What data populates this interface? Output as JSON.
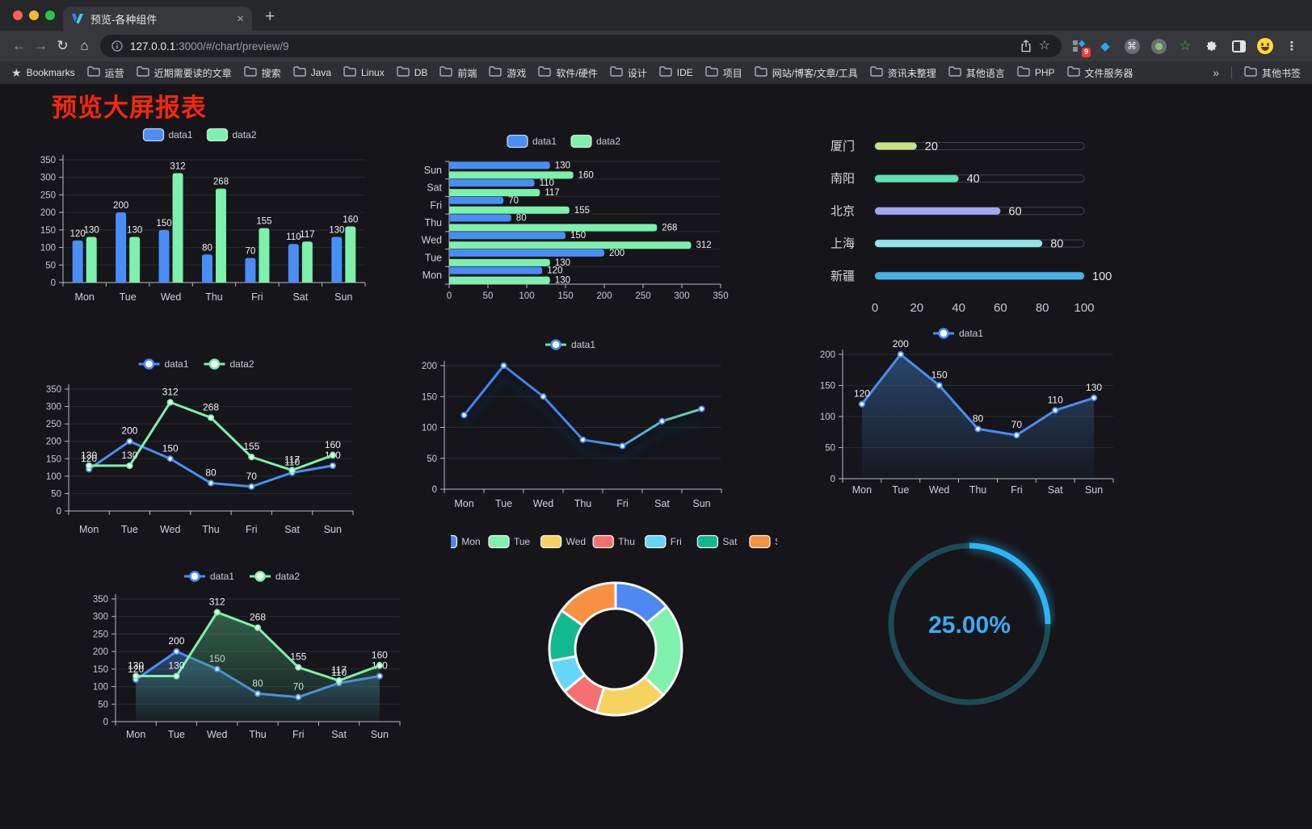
{
  "browser": {
    "window_controls": {
      "close": "#ff5f57",
      "minimize": "#febb2e",
      "zoom": "#27c840"
    },
    "tab": {
      "title": "预览-各种组件",
      "close_glyph": "×",
      "new_tab_glyph": "+"
    },
    "address_bar": {
      "host": "127.0.0.1",
      "path": ":3000/#/chart/preview/9"
    },
    "extensions": {
      "badge_count": "9"
    },
    "bookmarks_bar": {
      "bookmarks_label": "Bookmarks",
      "folders": [
        "运营",
        "近期需要读的文章",
        "搜索",
        "Java",
        "Linux",
        "DB",
        "前端",
        "游戏",
        "软件/硬件",
        "设计",
        "IDE",
        "项目",
        "网站/博客/文章/工具",
        "资讯未整理",
        "其他语言",
        "PHP",
        "文件服务器"
      ],
      "overflow_glyph": "»",
      "other_bookmarks_label": "其他书签"
    }
  },
  "page": {
    "title": "预览大屏报表",
    "title_color": "#f5270e",
    "background": "#15151a"
  },
  "chart_data": [
    {
      "id": "grouped-bar",
      "type": "bar",
      "orientation": "vertical",
      "categories": [
        "Mon",
        "Tue",
        "Wed",
        "Thu",
        "Fri",
        "Sat",
        "Sun"
      ],
      "series": [
        {
          "name": "data1",
          "color": "#4a8df5",
          "values": [
            120,
            200,
            150,
            80,
            70,
            110,
            130
          ]
        },
        {
          "name": "data2",
          "color": "#7df0ab",
          "values": [
            130,
            130,
            312,
            268,
            155,
            117,
            160
          ]
        }
      ],
      "ylim": [
        0,
        350
      ],
      "yticks": [
        0,
        50,
        100,
        150,
        200,
        250,
        300,
        350
      ],
      "grid": true,
      "legend_position": "top",
      "value_labels": true
    },
    {
      "id": "grouped-horizontal-bar",
      "type": "bar",
      "orientation": "horizontal",
      "categories": [
        "Mon",
        "Tue",
        "Wed",
        "Thu",
        "Fri",
        "Sat",
        "Sun"
      ],
      "series": [
        {
          "name": "data1",
          "color": "#4a8df5",
          "values": [
            120,
            200,
            150,
            80,
            70,
            110,
            130
          ]
        },
        {
          "name": "data2",
          "color": "#7df0ab",
          "values": [
            130,
            130,
            312,
            268,
            155,
            117,
            160
          ]
        }
      ],
      "xlim": [
        0,
        350
      ],
      "xticks": [
        0,
        50,
        100,
        150,
        200,
        250,
        300,
        350
      ],
      "grid": true,
      "legend_position": "top",
      "value_labels": true
    },
    {
      "id": "city-progress-bars",
      "type": "bar",
      "subtype": "progress",
      "categories": [
        "厦门",
        "南阳",
        "北京",
        "上海",
        "新疆"
      ],
      "values": [
        20,
        40,
        60,
        80,
        100
      ],
      "colors": [
        "#c6e387",
        "#5fe0ae",
        "#a0a7f2",
        "#8fe6ea",
        "#41b4e8"
      ],
      "xlim": [
        0,
        100
      ],
      "xticks": [
        0,
        20,
        40,
        60,
        80,
        100
      ],
      "value_labels": true
    },
    {
      "id": "two-series-line",
      "type": "line",
      "categories": [
        "Mon",
        "Tue",
        "Wed",
        "Thu",
        "Fri",
        "Sat",
        "Sun"
      ],
      "series": [
        {
          "name": "data1",
          "color": "#4a8df5",
          "values": [
            120,
            200,
            150,
            80,
            70,
            110,
            130
          ]
        },
        {
          "name": "data2",
          "color": "#7df0ab",
          "values": [
            130,
            130,
            312,
            268,
            155,
            117,
            160
          ]
        }
      ],
      "ylim": [
        0,
        350
      ],
      "yticks": [
        0,
        50,
        100,
        150,
        200,
        250,
        300,
        350
      ],
      "legend_position": "top",
      "value_labels": true
    },
    {
      "id": "gradient-line",
      "type": "line",
      "categories": [
        "Mon",
        "Tue",
        "Wed",
        "Thu",
        "Fri",
        "Sat",
        "Sun"
      ],
      "series": [
        {
          "name": "data1",
          "color_gradient": [
            "#4285f4",
            "#69e79e"
          ],
          "values": [
            120,
            200,
            150,
            80,
            70,
            110,
            130
          ]
        }
      ],
      "ylim": [
        0,
        200
      ],
      "yticks": [
        0,
        50,
        100,
        150,
        200
      ],
      "legend_position": "top",
      "value_labels": false
    },
    {
      "id": "area-line",
      "type": "area",
      "categories": [
        "Mon",
        "Tue",
        "Wed",
        "Thu",
        "Fri",
        "Sat",
        "Sun"
      ],
      "series": [
        {
          "name": "data1",
          "color": "#4a8df5",
          "area": true,
          "area_color": "#3a6fb0",
          "values": [
            120,
            200,
            150,
            80,
            70,
            110,
            130
          ]
        }
      ],
      "ylim": [
        0,
        200
      ],
      "yticks": [
        0,
        50,
        100,
        150,
        200
      ],
      "legend_position": "top",
      "value_labels": true
    },
    {
      "id": "two-series-area-line",
      "type": "area",
      "categories": [
        "Mon",
        "Tue",
        "Wed",
        "Thu",
        "Fri",
        "Sat",
        "Sun"
      ],
      "series": [
        {
          "name": "data1",
          "color": "#4a8df5",
          "area": true,
          "area_color": "#3a6fb0",
          "values": [
            120,
            200,
            150,
            80,
            70,
            110,
            130
          ]
        },
        {
          "name": "data2",
          "color": "#7df0ab",
          "area": true,
          "area_color": "#4a9e6e",
          "values": [
            130,
            130,
            312,
            268,
            155,
            117,
            160
          ]
        }
      ],
      "ylim": [
        0,
        350
      ],
      "yticks": [
        0,
        50,
        100,
        150,
        200,
        250,
        300,
        350
      ],
      "legend_position": "top",
      "value_labels": true
    },
    {
      "id": "donut-pie",
      "type": "pie",
      "donut": true,
      "categories": [
        "Mon",
        "Tue",
        "Wed",
        "Thu",
        "Fri",
        "Sat",
        "Sun"
      ],
      "values": [
        120,
        200,
        150,
        80,
        70,
        110,
        130
      ],
      "colors": [
        "#4e88f0",
        "#80f0ad",
        "#f6d35e",
        "#f5706e",
        "#67d5f8",
        "#12b98e",
        "#f79040"
      ],
      "legend_position": "top"
    },
    {
      "id": "percent-gauge",
      "type": "gauge",
      "value": 25,
      "max": 100,
      "label": "25.00%",
      "progress_color": "#2ab5f5",
      "track_color": "#1d4a55",
      "text_color": "#3fa9ef"
    }
  ]
}
